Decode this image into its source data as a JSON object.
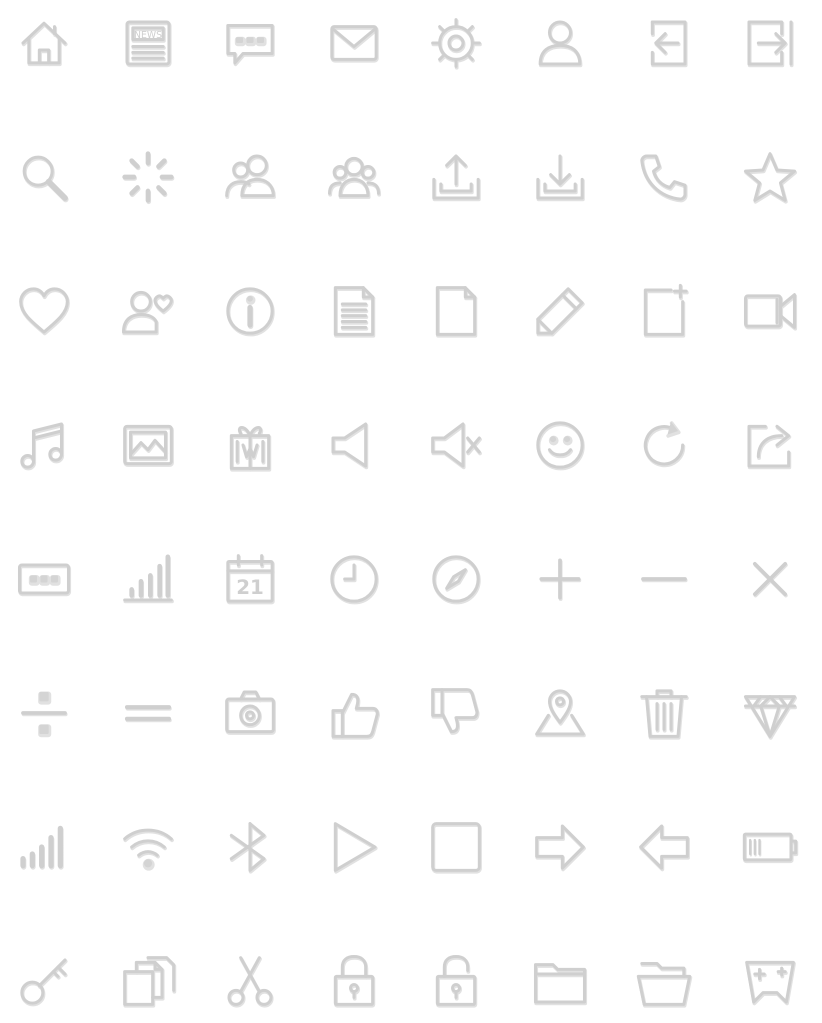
{
  "icon_rows": [
    [
      "home-icon",
      "newspaper-icon",
      "chat-bubble-icon",
      "envelope-icon",
      "gear-icon",
      "user-icon",
      "sign-in-icon",
      "sign-out-icon"
    ],
    [
      "search-icon",
      "loading-spinner-icon",
      "user-pair-icon",
      "user-group-icon",
      "upload-icon",
      "download-icon",
      "phone-icon",
      "star-icon"
    ],
    [
      "heart-icon",
      "user-favorite-icon",
      "info-icon",
      "document-text-icon",
      "document-blank-icon",
      "pencil-icon",
      "document-add-icon",
      "video-camera-icon"
    ],
    [
      "music-note-icon",
      "image-icon",
      "gift-icon",
      "speaker-icon",
      "speaker-mute-icon",
      "smiley-icon",
      "refresh-icon",
      "share-icon"
    ],
    [
      "keyboard-dots-icon",
      "bar-chart-icon",
      "calendar-icon",
      "clock-icon",
      "compass-icon",
      "plus-icon",
      "minus-icon",
      "close-icon"
    ],
    [
      "divide-icon",
      "equals-icon",
      "camera-icon",
      "thumbs-up-icon",
      "thumbs-down-icon",
      "map-pin-icon",
      "trash-icon",
      "diamond-icon"
    ],
    [
      "signal-strength-icon",
      "wifi-icon",
      "bluetooth-icon",
      "play-icon",
      "stop-icon",
      "arrow-right-icon",
      "arrow-left-icon",
      "battery-icon"
    ],
    [
      "key-icon",
      "copy-icon",
      "scissors-icon",
      "lock-icon",
      "unlock-icon",
      "folder-icon",
      "folder-open-icon",
      "gamepad-icon"
    ]
  ],
  "labels": {
    "newspaper": "NEWS",
    "calendar_day": "21"
  },
  "colors": {
    "background": "#ffffff",
    "icon_stroke": "#cfcfcf",
    "icon_shadow": "#bdbdbd"
  }
}
